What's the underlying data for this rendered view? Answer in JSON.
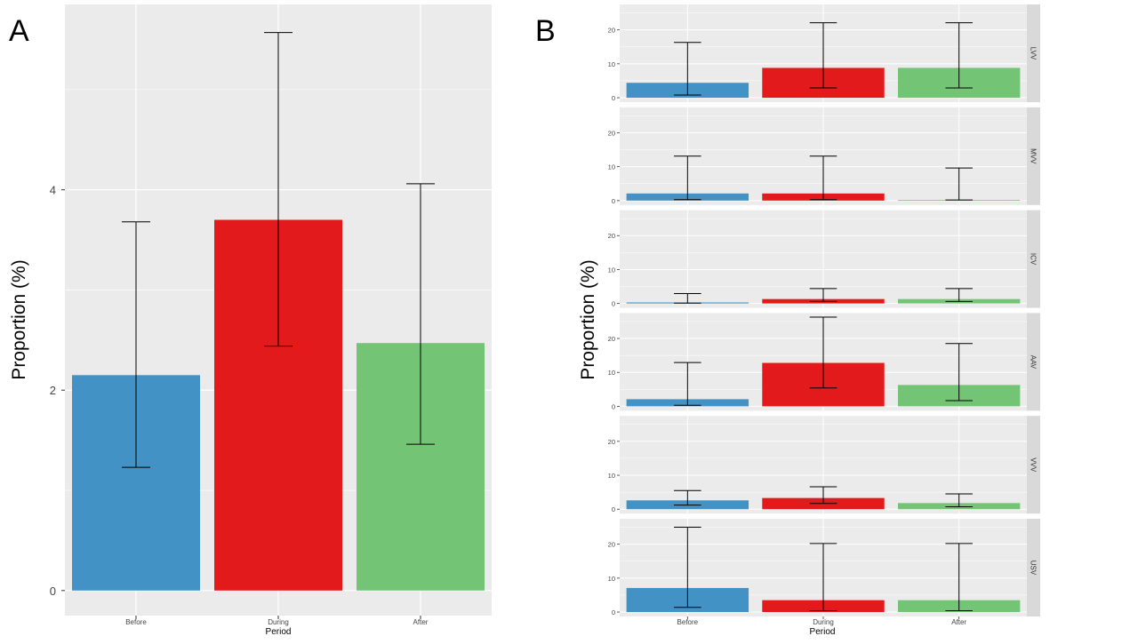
{
  "colors": {
    "before": "#4292c6",
    "during": "#e31a1c",
    "after": "#74c476",
    "panel_bg": "#ebebeb",
    "strip_bg": "#d9d9d9",
    "grid": "#ffffff"
  },
  "chart_data": [
    {
      "panel_label": "A",
      "type": "bar",
      "categories": [
        "Before",
        "During",
        "After"
      ],
      "values": [
        2.15,
        3.7,
        2.47
      ],
      "error_low": [
        1.23,
        2.44,
        1.46
      ],
      "error_high": [
        3.68,
        5.57,
        4.06
      ],
      "xlabel": "Period",
      "ylabel": "Proportion (%)",
      "yticks": [
        "0",
        "2",
        "4"
      ],
      "ylim": [
        -0.25,
        5.85
      ]
    },
    {
      "panel_label": "B",
      "type": "bar",
      "categories": [
        "Before",
        "During",
        "After"
      ],
      "xlabel": "Period",
      "ylabel": "Proportion (%)",
      "yticks": [
        "0",
        "10",
        "20"
      ],
      "ylim": [
        -1.3,
        27.5
      ],
      "facets": [
        {
          "strip": "LVV",
          "values": [
            4.4,
            8.8,
            8.8
          ],
          "error_low": [
            0.8,
            2.9,
            2.9
          ],
          "error_high": [
            16.3,
            22.1,
            22.1
          ]
        },
        {
          "strip": "MVV",
          "values": [
            2.1,
            2.1,
            0.2
          ],
          "error_low": [
            0.3,
            0.3,
            0.2
          ],
          "error_high": [
            13.1,
            13.1,
            9.6
          ]
        },
        {
          "strip": "ICV",
          "values": [
            0.3,
            1.3,
            1.3
          ],
          "error_low": [
            0.1,
            0.6,
            0.6
          ],
          "error_high": [
            2.9,
            4.4,
            4.4
          ]
        },
        {
          "strip": "AAV",
          "values": [
            2.1,
            12.8,
            6.3
          ],
          "error_low": [
            0.3,
            5.4,
            1.7
          ],
          "error_high": [
            12.9,
            26.3,
            18.5
          ]
        },
        {
          "strip": "VVV",
          "values": [
            2.6,
            3.3,
            1.8
          ],
          "error_low": [
            1.2,
            1.7,
            0.7
          ],
          "error_high": [
            5.5,
            6.6,
            4.5
          ]
        },
        {
          "strip": "USV",
          "values": [
            7.1,
            3.5,
            3.5
          ],
          "error_low": [
            1.4,
            0.4,
            0.4
          ],
          "error_high": [
            25.0,
            20.2,
            20.2
          ]
        }
      ]
    }
  ]
}
